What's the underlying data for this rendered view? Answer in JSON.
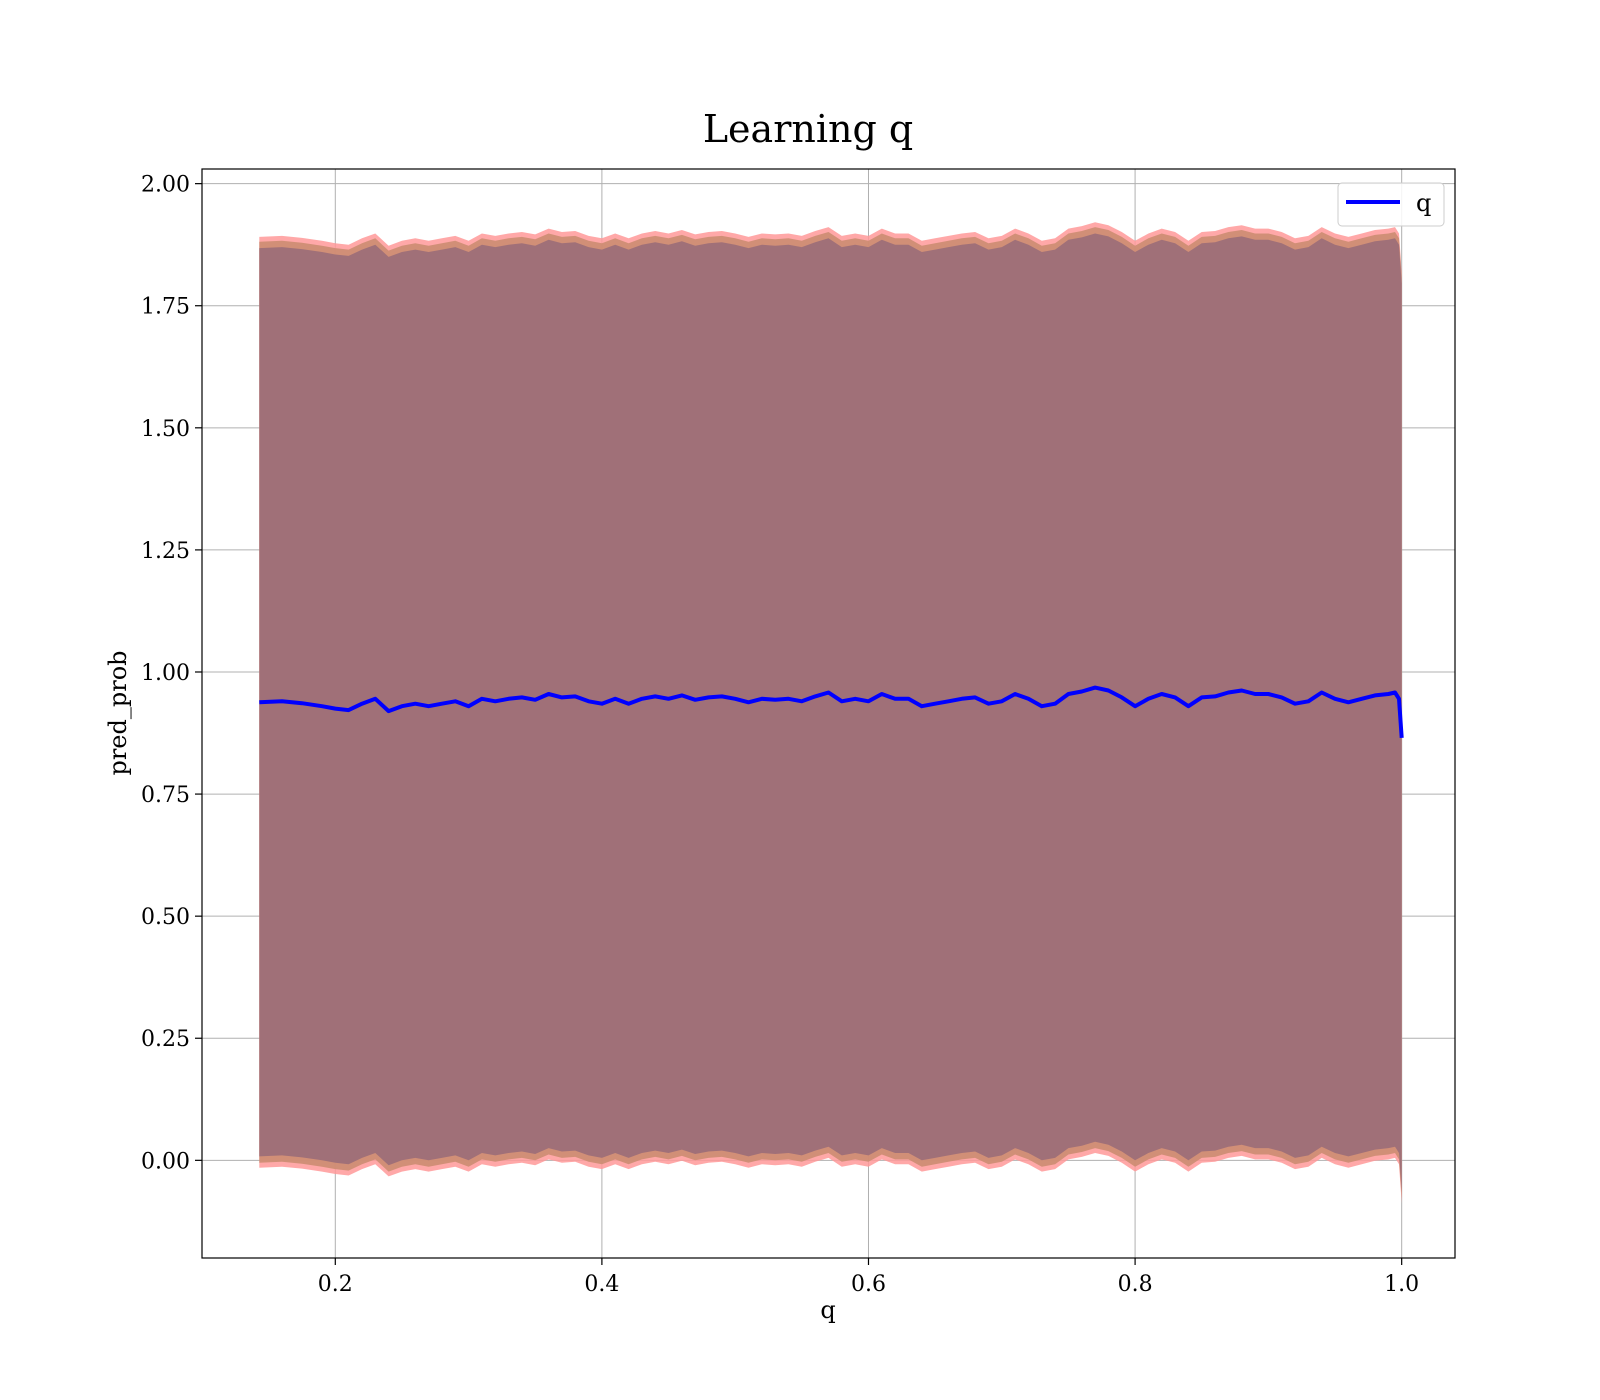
{
  "chart_data": {
    "type": "line",
    "title": "Learning q",
    "xlabel": "q",
    "ylabel": "pred_prob",
    "xlim": [
      0.1,
      1.04
    ],
    "ylim": [
      -0.2,
      2.03
    ],
    "xticks": [
      0.2,
      0.4,
      0.6,
      0.8,
      1.0
    ],
    "xtick_labels": [
      "0.2",
      "0.4",
      "0.6",
      "0.8",
      "1.0"
    ],
    "yticks": [
      0.0,
      0.25,
      0.5,
      0.75,
      1.0,
      1.25,
      1.5,
      1.75,
      2.0
    ],
    "ytick_labels": [
      "0.00",
      "0.25",
      "0.50",
      "0.75",
      "1.00",
      "1.25",
      "1.50",
      "1.75",
      "2.00"
    ],
    "grid": true,
    "legend_position": "top-right",
    "series": [
      {
        "name": "q",
        "color": "#0000ff",
        "x": [
          0.143,
          0.16,
          0.175,
          0.19,
          0.2,
          0.21,
          0.22,
          0.23,
          0.24,
          0.25,
          0.26,
          0.27,
          0.28,
          0.29,
          0.3,
          0.31,
          0.32,
          0.33,
          0.34,
          0.35,
          0.36,
          0.37,
          0.38,
          0.39,
          0.4,
          0.41,
          0.42,
          0.43,
          0.44,
          0.45,
          0.46,
          0.47,
          0.48,
          0.49,
          0.5,
          0.51,
          0.52,
          0.53,
          0.54,
          0.55,
          0.56,
          0.57,
          0.58,
          0.59,
          0.6,
          0.61,
          0.62,
          0.63,
          0.64,
          0.65,
          0.66,
          0.67,
          0.68,
          0.69,
          0.7,
          0.71,
          0.72,
          0.73,
          0.74,
          0.75,
          0.76,
          0.77,
          0.78,
          0.79,
          0.8,
          0.81,
          0.82,
          0.83,
          0.84,
          0.85,
          0.86,
          0.87,
          0.88,
          0.89,
          0.9,
          0.91,
          0.92,
          0.93,
          0.94,
          0.95,
          0.96,
          0.97,
          0.98,
          0.99,
          0.995,
          0.998,
          1.0
        ],
        "y": [
          0.938,
          0.94,
          0.936,
          0.93,
          0.925,
          0.922,
          0.935,
          0.945,
          0.92,
          0.93,
          0.935,
          0.93,
          0.935,
          0.94,
          0.93,
          0.945,
          0.94,
          0.945,
          0.948,
          0.943,
          0.955,
          0.948,
          0.95,
          0.94,
          0.935,
          0.945,
          0.935,
          0.945,
          0.95,
          0.945,
          0.952,
          0.943,
          0.948,
          0.95,
          0.945,
          0.938,
          0.945,
          0.943,
          0.945,
          0.94,
          0.95,
          0.958,
          0.94,
          0.945,
          0.94,
          0.955,
          0.945,
          0.945,
          0.93,
          0.935,
          0.94,
          0.945,
          0.948,
          0.935,
          0.94,
          0.955,
          0.945,
          0.93,
          0.935,
          0.955,
          0.96,
          0.968,
          0.962,
          0.948,
          0.93,
          0.945,
          0.955,
          0.948,
          0.93,
          0.948,
          0.95,
          0.958,
          0.962,
          0.955,
          0.955,
          0.948,
          0.935,
          0.94,
          0.958,
          0.945,
          0.938,
          0.945,
          0.952,
          0.955,
          0.958,
          0.945,
          0.865
        ]
      }
    ],
    "bands": [
      {
        "name": "outer",
        "color": "#ff9999",
        "opacity": 0.85,
        "upper_offset": 0.953,
        "lower_offset": -0.953
      },
      {
        "name": "middle",
        "color": "#c98b6e",
        "opacity": 0.85,
        "upper_offset": 0.943,
        "lower_offset": -0.943
      },
      {
        "name": "inner",
        "color": "#a07078",
        "opacity": 1.0,
        "upper_offset": 0.93,
        "lower_offset": -0.93
      }
    ]
  }
}
